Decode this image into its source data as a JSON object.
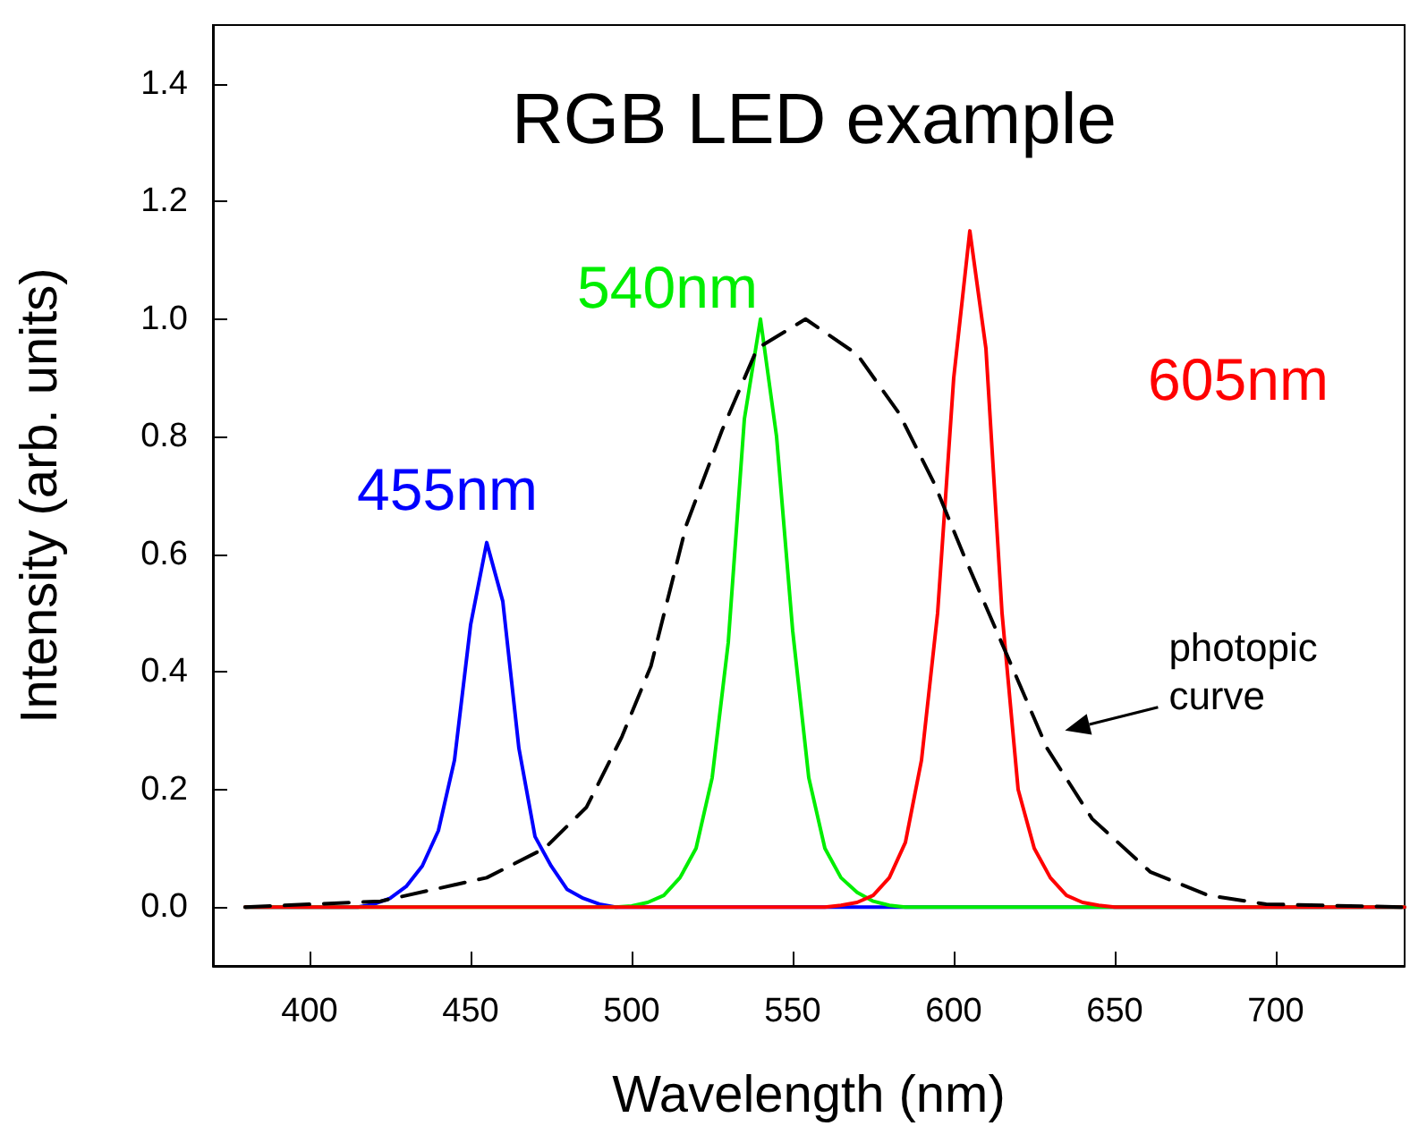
{
  "chart_data": {
    "type": "line",
    "title": "RGB LED example",
    "xlabel": "Wavelength (nm)",
    "ylabel": "Intensity (arb. units)",
    "xlim": [
      370,
      740
    ],
    "xticks": [
      400,
      450,
      500,
      550,
      600,
      650,
      700
    ],
    "ylim": [
      -0.1,
      1.5
    ],
    "yticks": [
      {
        "value": 0,
        "label": "0.0"
      },
      0.2,
      0.4,
      0.6,
      0.8,
      {
        "value": 1,
        "label": "1.0"
      },
      1.2,
      1.4
    ],
    "grid": false,
    "marker": "none",
    "line_style": "solid",
    "series": [
      {
        "color": "#0000ff",
        "x": [
          380,
          415,
          420,
          425,
          430,
          435,
          440,
          445,
          450,
          455,
          460,
          465,
          470,
          475,
          480,
          485,
          490,
          495,
          500,
          740
        ],
        "values": [
          0,
          0,
          0.005,
          0.015,
          0.035,
          0.07,
          0.13,
          0.25,
          0.48,
          0.62,
          0.52,
          0.27,
          0.12,
          0.07,
          0.03,
          0.015,
          0.005,
          0,
          0,
          0
        ]
      },
      {
        "color": "#00ee00",
        "x": [
          380,
          495,
          500,
          505,
          510,
          515,
          520,
          525,
          530,
          535,
          540,
          545,
          550,
          555,
          560,
          565,
          570,
          575,
          580,
          585,
          740
        ],
        "values": [
          0,
          0,
          0.002,
          0.008,
          0.02,
          0.05,
          0.1,
          0.22,
          0.45,
          0.83,
          1.0,
          0.8,
          0.47,
          0.22,
          0.1,
          0.05,
          0.025,
          0.01,
          0.003,
          0,
          0
        ]
      },
      {
        "color": "#ff0000",
        "x": [
          380,
          560,
          565,
          570,
          575,
          580,
          585,
          590,
          595,
          600,
          605,
          610,
          615,
          620,
          625,
          630,
          635,
          640,
          645,
          650,
          740
        ],
        "values": [
          0,
          0,
          0.003,
          0.008,
          0.02,
          0.05,
          0.11,
          0.25,
          0.5,
          0.9,
          1.15,
          0.95,
          0.5,
          0.2,
          0.1,
          0.05,
          0.02,
          0.008,
          0.003,
          0,
          0
        ]
      },
      {
        "color": "#000000",
        "line_style": "dashed",
        "x": [
          380,
          422,
          455,
          473,
          486,
          497,
          506,
          517,
          528,
          539,
          554,
          570,
          583,
          594,
          603,
          618,
          629,
          643,
          661,
          679,
          697,
          740
        ],
        "values": [
          0,
          0.01,
          0.05,
          0.1,
          0.17,
          0.29,
          0.41,
          0.65,
          0.81,
          0.95,
          1.0,
          0.94,
          0.84,
          0.72,
          0.6,
          0.41,
          0.27,
          0.15,
          0.06,
          0.02,
          0.005,
          0
        ]
      }
    ],
    "annotations": [
      "455nm",
      "540nm",
      "605nm",
      "photopic curve"
    ]
  }
}
